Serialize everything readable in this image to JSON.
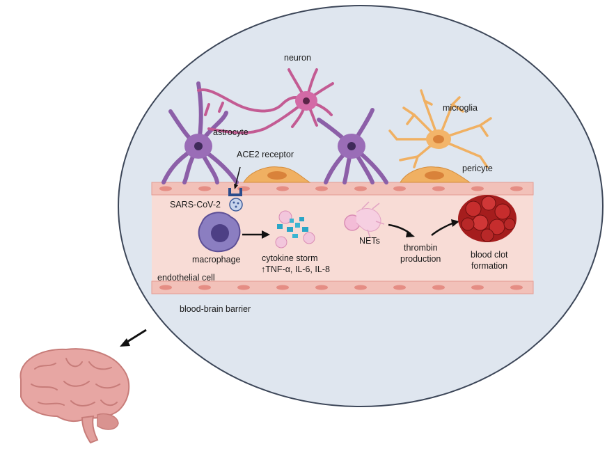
{
  "labels": {
    "neuron": "neuron",
    "astrocyte": "astrocyte",
    "microglia": "microglia",
    "ace2_receptor": "ACE2 receptor",
    "pericyte": "pericyte",
    "sars_cov_2": "SARS-CoV-2",
    "macrophage": "macrophage",
    "cytokine_storm": "cytokine storm",
    "cytokines": "↑TNF-α, IL-6, IL-8",
    "nets": "NETs",
    "thrombin_1": "thrombin",
    "thrombin_2": "production",
    "clot_1": "blood clot",
    "clot_2": "formation",
    "endothelial_cell": "endothelial cell",
    "bbb": "blood-brain barrier"
  },
  "colors": {
    "bubble_fill": "#dfe6ef",
    "bubble_stroke": "#3c4658",
    "vessel_fill": "#f8dcd6",
    "endothelial": "#f2b8b0",
    "astrocyte": "#8c5fa8",
    "neuron": "#c35b93",
    "microglia": "#f0b062",
    "pericyte": "#f0b062",
    "macrophage": "#7b6bae",
    "clot": "#b02020",
    "brain": "#e7a6a3"
  }
}
